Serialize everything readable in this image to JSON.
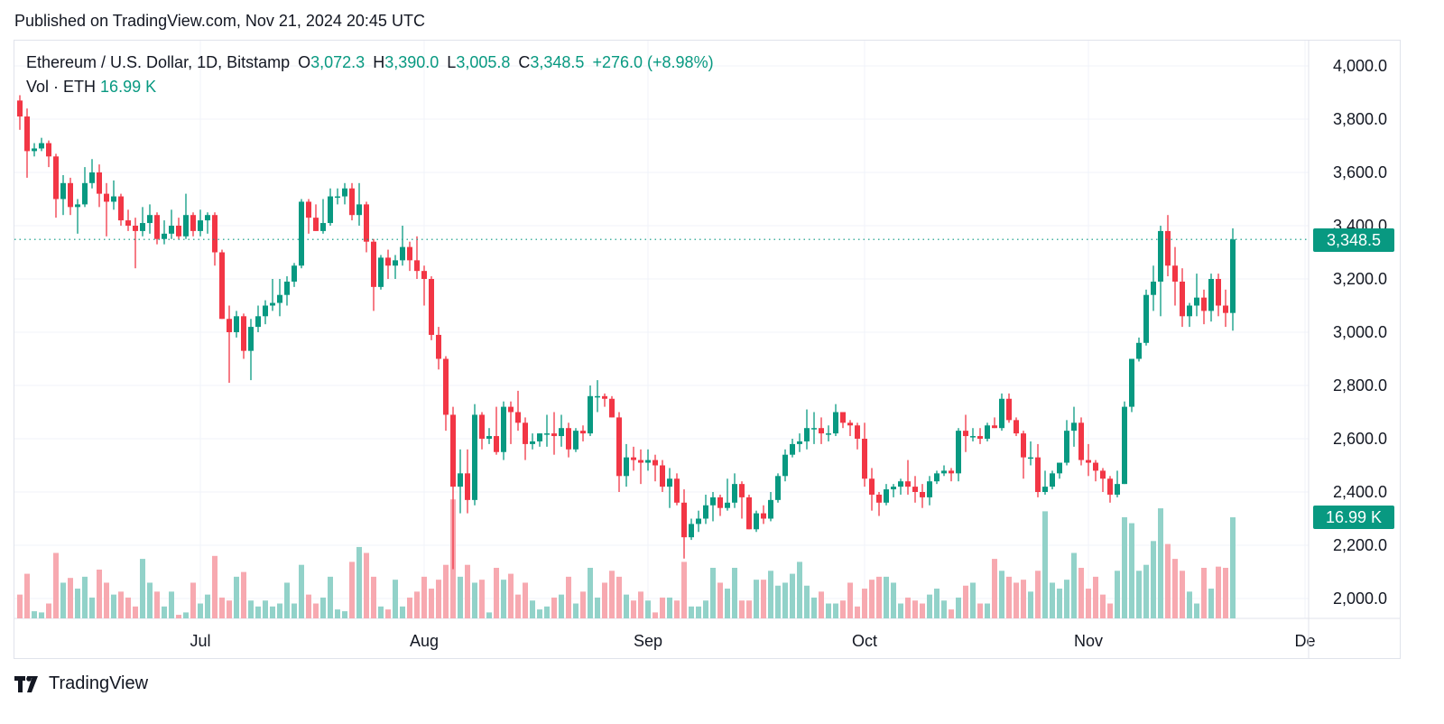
{
  "header": {
    "published": "Published on TradingView.com, Nov 21, 2024 20:45 UTC"
  },
  "legend": {
    "symbol": "Ethereum / U.S. Dollar, 1D, Bitstamp",
    "o_label": "O",
    "o": "3,072.3",
    "h_label": "H",
    "h": "3,390.0",
    "l_label": "L",
    "l": "3,005.8",
    "c_label": "C",
    "c": "3,348.5",
    "change": "+276.0 (+8.98%)",
    "vol_label": "Vol · ETH",
    "vol": "16.99 K"
  },
  "price_tag": "3,348.5",
  "volume_tag": "16.99 K",
  "footer": {
    "logo_text": "TradingView"
  },
  "colors": {
    "up": "#089981",
    "down": "#F23645",
    "up_volume": "#92d2c9",
    "down_volume": "#f7a9b0",
    "grid": "#f0f3fa"
  },
  "chart_data": {
    "type": "candlestick",
    "title": "Ethereum / U.S. Dollar, 1D, Bitstamp",
    "start_date": "2024-06-06",
    "end_date": "2024-11-21",
    "ylim": [
      1930,
      4100
    ],
    "y_ticks": [
      "2,000.0",
      "2,200.0",
      "2,400.0",
      "2,600.0",
      "2,800.0",
      "3,000.0",
      "3,200.0",
      "3,400.0",
      "3,600.0",
      "3,800.0",
      "4,000.0"
    ],
    "y_tick_values": [
      2000,
      2200,
      2400,
      2600,
      2800,
      3000,
      3200,
      3400,
      3600,
      3800,
      4000
    ],
    "x_ticks": [
      {
        "label": "Jul",
        "date": "2024-07-01"
      },
      {
        "label": "Aug",
        "date": "2024-08-01"
      },
      {
        "label": "Sep",
        "date": "2024-09-01"
      },
      {
        "label": "Oct",
        "date": "2024-10-01"
      },
      {
        "label": "Nov",
        "date": "2024-11-01"
      },
      {
        "label": "De",
        "date": "2024-12-01"
      }
    ],
    "last_price": 3348.5,
    "grid": true,
    "ohlc": [
      [
        3870,
        3890,
        3760,
        3810
      ],
      [
        3810,
        3840,
        3580,
        3680
      ],
      [
        3680,
        3710,
        3660,
        3690
      ],
      [
        3690,
        3730,
        3680,
        3710
      ],
      [
        3710,
        3720,
        3620,
        3660
      ],
      [
        3660,
        3670,
        3430,
        3500
      ],
      [
        3500,
        3590,
        3440,
        3560
      ],
      [
        3560,
        3580,
        3440,
        3470
      ],
      [
        3470,
        3500,
        3370,
        3480
      ],
      [
        3480,
        3620,
        3470,
        3560
      ],
      [
        3560,
        3650,
        3540,
        3600
      ],
      [
        3600,
        3630,
        3470,
        3520
      ],
      [
        3520,
        3560,
        3360,
        3490
      ],
      [
        3490,
        3570,
        3460,
        3510
      ],
      [
        3510,
        3520,
        3400,
        3420
      ],
      [
        3420,
        3460,
        3380,
        3400
      ],
      [
        3400,
        3430,
        3240,
        3380
      ],
      [
        3380,
        3470,
        3360,
        3410
      ],
      [
        3410,
        3480,
        3370,
        3440
      ],
      [
        3440,
        3450,
        3330,
        3350
      ],
      [
        3350,
        3420,
        3330,
        3370
      ],
      [
        3370,
        3460,
        3350,
        3400
      ],
      [
        3400,
        3430,
        3350,
        3360
      ],
      [
        3360,
        3520,
        3350,
        3440
      ],
      [
        3440,
        3450,
        3360,
        3380
      ],
      [
        3380,
        3460,
        3360,
        3420
      ],
      [
        3420,
        3450,
        3370,
        3440
      ],
      [
        3440,
        3450,
        3250,
        3300
      ],
      [
        3300,
        3310,
        3050,
        3050
      ],
      [
        3050,
        3100,
        2810,
        3000
      ],
      [
        3000,
        3080,
        2980,
        3060
      ],
      [
        3060,
        3070,
        2900,
        2930
      ],
      [
        2930,
        3050,
        2820,
        3020
      ],
      [
        3020,
        3100,
        3000,
        3060
      ],
      [
        3060,
        3120,
        3030,
        3100
      ],
      [
        3100,
        3200,
        3080,
        3110
      ],
      [
        3110,
        3200,
        3060,
        3140
      ],
      [
        3140,
        3210,
        3100,
        3190
      ],
      [
        3190,
        3260,
        3170,
        3250
      ],
      [
        3250,
        3500,
        3240,
        3490
      ],
      [
        3490,
        3500,
        3370,
        3430
      ],
      [
        3430,
        3480,
        3380,
        3380
      ],
      [
        3380,
        3500,
        3370,
        3410
      ],
      [
        3410,
        3540,
        3400,
        3510
      ],
      [
        3510,
        3540,
        3480,
        3510
      ],
      [
        3510,
        3560,
        3480,
        3540
      ],
      [
        3540,
        3560,
        3420,
        3440
      ],
      [
        3440,
        3560,
        3400,
        3480
      ],
      [
        3480,
        3490,
        3300,
        3340
      ],
      [
        3340,
        3350,
        3080,
        3170
      ],
      [
        3170,
        3290,
        3160,
        3280
      ],
      [
        3280,
        3310,
        3200,
        3250
      ],
      [
        3250,
        3290,
        3200,
        3270
      ],
      [
        3270,
        3400,
        3250,
        3320
      ],
      [
        3320,
        3340,
        3230,
        3270
      ],
      [
        3270,
        3360,
        3200,
        3230
      ],
      [
        3230,
        3250,
        3100,
        3200
      ],
      [
        3200,
        3210,
        2970,
        2990
      ],
      [
        2990,
        3020,
        2860,
        2900
      ],
      [
        2900,
        2910,
        2630,
        2690
      ],
      [
        2690,
        2720,
        2110,
        2420
      ],
      [
        2420,
        2560,
        2320,
        2470
      ],
      [
        2470,
        2560,
        2320,
        2370
      ],
      [
        2370,
        2730,
        2350,
        2690
      ],
      [
        2690,
        2700,
        2560,
        2600
      ],
      [
        2600,
        2640,
        2580,
        2610
      ],
      [
        2610,
        2720,
        2540,
        2550
      ],
      [
        2550,
        2740,
        2520,
        2720
      ],
      [
        2720,
        2740,
        2580,
        2700
      ],
      [
        2700,
        2780,
        2630,
        2660
      ],
      [
        2660,
        2680,
        2520,
        2580
      ],
      [
        2580,
        2620,
        2560,
        2590
      ],
      [
        2590,
        2620,
        2570,
        2620
      ],
      [
        2620,
        2690,
        2570,
        2620
      ],
      [
        2620,
        2700,
        2540,
        2610
      ],
      [
        2610,
        2690,
        2570,
        2640
      ],
      [
        2640,
        2660,
        2530,
        2560
      ],
      [
        2560,
        2640,
        2550,
        2630
      ],
      [
        2630,
        2650,
        2590,
        2620
      ],
      [
        2620,
        2800,
        2610,
        2760
      ],
      [
        2760,
        2820,
        2700,
        2760
      ],
      [
        2760,
        2770,
        2720,
        2750
      ],
      [
        2750,
        2760,
        2680,
        2680
      ],
      [
        2680,
        2700,
        2400,
        2460
      ],
      [
        2460,
        2580,
        2420,
        2530
      ],
      [
        2530,
        2570,
        2480,
        2520
      ],
      [
        2520,
        2560,
        2430,
        2510
      ],
      [
        2510,
        2560,
        2480,
        2520
      ],
      [
        2520,
        2540,
        2440,
        2500
      ],
      [
        2500,
        2520,
        2400,
        2420
      ],
      [
        2420,
        2490,
        2340,
        2450
      ],
      [
        2450,
        2470,
        2350,
        2360
      ],
      [
        2360,
        2410,
        2150,
        2230
      ],
      [
        2230,
        2300,
        2220,
        2280
      ],
      [
        2280,
        2330,
        2250,
        2300
      ],
      [
        2300,
        2390,
        2280,
        2350
      ],
      [
        2350,
        2400,
        2290,
        2380
      ],
      [
        2380,
        2390,
        2310,
        2340
      ],
      [
        2340,
        2450,
        2330,
        2360
      ],
      [
        2360,
        2470,
        2340,
        2430
      ],
      [
        2430,
        2440,
        2300,
        2380
      ],
      [
        2380,
        2390,
        2260,
        2260
      ],
      [
        2260,
        2330,
        2250,
        2320
      ],
      [
        2320,
        2350,
        2280,
        2300
      ],
      [
        2300,
        2400,
        2290,
        2370
      ],
      [
        2370,
        2470,
        2360,
        2460
      ],
      [
        2460,
        2560,
        2440,
        2540
      ],
      [
        2540,
        2600,
        2530,
        2580
      ],
      [
        2580,
        2620,
        2550,
        2590
      ],
      [
        2590,
        2710,
        2560,
        2640
      ],
      [
        2640,
        2700,
        2580,
        2640
      ],
      [
        2640,
        2680,
        2580,
        2620
      ],
      [
        2620,
        2650,
        2590,
        2620
      ],
      [
        2620,
        2730,
        2610,
        2700
      ],
      [
        2700,
        2700,
        2640,
        2660
      ],
      [
        2660,
        2670,
        2610,
        2650
      ],
      [
        2650,
        2660,
        2560,
        2600
      ],
      [
        2600,
        2660,
        2420,
        2450
      ],
      [
        2450,
        2490,
        2330,
        2390
      ],
      [
        2390,
        2400,
        2310,
        2360
      ],
      [
        2360,
        2430,
        2350,
        2410
      ],
      [
        2410,
        2430,
        2380,
        2420
      ],
      [
        2420,
        2450,
        2390,
        2440
      ],
      [
        2440,
        2520,
        2390,
        2420
      ],
      [
        2420,
        2460,
        2360,
        2400
      ],
      [
        2400,
        2430,
        2340,
        2380
      ],
      [
        2380,
        2460,
        2350,
        2440
      ],
      [
        2440,
        2480,
        2430,
        2470
      ],
      [
        2470,
        2500,
        2460,
        2480
      ],
      [
        2480,
        2490,
        2440,
        2470
      ],
      [
        2470,
        2640,
        2440,
        2630
      ],
      [
        2630,
        2690,
        2550,
        2610
      ],
      [
        2610,
        2640,
        2590,
        2610
      ],
      [
        2610,
        2640,
        2580,
        2600
      ],
      [
        2600,
        2660,
        2590,
        2650
      ],
      [
        2650,
        2680,
        2640,
        2640
      ],
      [
        2640,
        2770,
        2630,
        2750
      ],
      [
        2750,
        2770,
        2660,
        2670
      ],
      [
        2670,
        2680,
        2610,
        2620
      ],
      [
        2620,
        2630,
        2450,
        2530
      ],
      [
        2530,
        2590,
        2500,
        2530
      ],
      [
        2530,
        2580,
        2380,
        2400
      ],
      [
        2400,
        2480,
        2390,
        2420
      ],
      [
        2420,
        2480,
        2410,
        2470
      ],
      [
        2470,
        2510,
        2450,
        2510
      ],
      [
        2510,
        2670,
        2500,
        2630
      ],
      [
        2630,
        2720,
        2570,
        2660
      ],
      [
        2660,
        2680,
        2500,
        2520
      ],
      [
        2520,
        2580,
        2460,
        2510
      ],
      [
        2510,
        2520,
        2440,
        2480
      ],
      [
        2480,
        2490,
        2400,
        2450
      ],
      [
        2450,
        2460,
        2360,
        2390
      ],
      [
        2390,
        2480,
        2380,
        2430
      ],
      [
        2430,
        2740,
        2430,
        2720
      ],
      [
        2720,
        2900,
        2700,
        2900
      ],
      [
        2900,
        2980,
        2890,
        2960
      ],
      [
        2960,
        3160,
        2950,
        3140
      ],
      [
        3140,
        3250,
        3080,
        3190
      ],
      [
        3190,
        3400,
        3060,
        3380
      ],
      [
        3380,
        3440,
        3210,
        3250
      ],
      [
        3250,
        3320,
        3100,
        3190
      ],
      [
        3190,
        3240,
        3020,
        3060
      ],
      [
        3060,
        3110,
        3020,
        3100
      ],
      [
        3100,
        3220,
        3060,
        3130
      ],
      [
        3130,
        3160,
        3030,
        3080
      ],
      [
        3080,
        3220,
        3040,
        3200
      ],
      [
        3200,
        3220,
        3060,
        3100
      ],
      [
        3100,
        3160,
        3020,
        3072.3
      ],
      [
        3072.3,
        3390,
        3005.8,
        3348.5
      ]
    ],
    "volume_k": [
      4,
      7.5,
      1.2,
      1,
      2.5,
      11,
      6,
      6.8,
      5,
      7,
      3.5,
      8.2,
      6,
      4,
      4.5,
      3.5,
      2,
      10,
      6,
      4.5,
      2,
      4.5,
      0.6,
      1,
      6,
      2.5,
      4,
      10.5,
      3.5,
      3,
      7,
      7.8,
      3,
      2,
      3,
      2,
      2.5,
      6,
      2.5,
      9,
      4,
      2.5,
      3.5,
      7,
      1.5,
      1.2,
      9.5,
      12,
      11,
      7,
      2,
      1.5,
      6.5,
      2,
      3.5,
      4.5,
      7,
      5,
      6.5,
      9,
      20,
      7,
      9,
      6,
      6.5,
      1,
      8.5,
      6.5,
      7.5,
      4,
      6,
      3,
      1.5,
      2,
      3.5,
      4,
      7,
      2.5,
      4.5,
      8.5,
      3.5,
      6,
      8,
      7,
      4,
      3,
      4.5,
      3,
      1,
      3.5,
      3.5,
      3,
      9.5,
      2,
      2,
      3,
      8.5,
      6,
      5,
      8.5,
      3,
      3,
      6.5,
      6.5,
      8,
      5.5,
      6,
      7.5,
      9.5,
      5.5,
      3.5,
      4.5,
      2.5,
      2.5,
      3,
      6,
      2,
      5,
      6.5,
      7,
      7,
      6,
      2.5,
      3.5,
      3,
      2.5,
      4,
      5,
      3,
      1.5,
      3.5,
      5.5,
      6,
      2.5,
      2.5,
      10,
      8,
      7,
      6,
      6.5,
      4.5,
      8,
      18,
      6,
      5,
      6.5,
      11,
      8.5,
      5,
      7,
      4,
      2.5,
      8,
      17,
      16,
      8,
      9,
      13,
      18.5,
      12.5,
      10,
      8,
      4.5,
      2.5,
      8.5,
      5,
      8.7,
      8.5,
      16.99
    ]
  }
}
